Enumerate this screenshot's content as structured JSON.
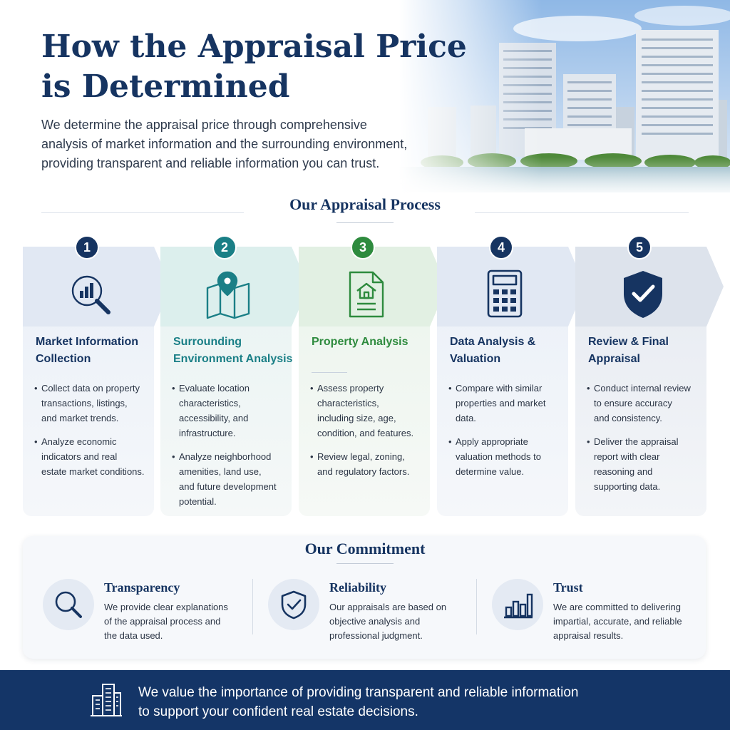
{
  "hero": {
    "title_line1": "How the Appraisal Price",
    "title_line2": "is Determined",
    "intro_line1": "We determine the appraisal price through comprehensive",
    "intro_line2": "analysis of market information and the surrounding environment,",
    "intro_line3": "providing transparent and reliable information you can trust.",
    "image": "city-skyline-riverside-photo"
  },
  "process": {
    "heading": "Our Appraisal Process",
    "steps": [
      {
        "number": "1",
        "title_line1": "Market Information",
        "title_line2": "Collection",
        "icon": "magnifier-chart-icon",
        "accent": "#163461",
        "bullets": [
          [
            "Collect data on property",
            "transactions, listings,",
            "and market trends."
          ],
          [
            "Analyze economic",
            "indicators and real",
            "estate market conditions."
          ]
        ]
      },
      {
        "number": "2",
        "title_line1": "Surrounding",
        "title_line2": "Environment Analysis",
        "icon": "map-pin-icon",
        "accent": "#1a7f86",
        "bullets": [
          [
            "Evaluate location",
            "characteristics,",
            "accessibility, and",
            "infrastructure."
          ],
          [
            "Analyze neighborhood",
            "amenities, land use,",
            "and future development",
            "potential."
          ]
        ]
      },
      {
        "number": "3",
        "title_line1": "Property Analysis",
        "title_line2": "",
        "icon": "document-house-icon",
        "accent": "#2e8b3e",
        "bullets": [
          [
            "Assess property",
            "characteristics,",
            "including size, age,",
            "condition, and features."
          ],
          [
            "Review legal, zoning,",
            "and regulatory factors."
          ]
        ]
      },
      {
        "number": "4",
        "title_line1": "Data Analysis &",
        "title_line2": "Valuation",
        "icon": "calculator-icon",
        "accent": "#163461",
        "bullets": [
          [
            "Compare with similar",
            "properties and market",
            "data."
          ],
          [
            "Apply appropriate",
            "valuation methods to",
            "determine value."
          ]
        ]
      },
      {
        "number": "5",
        "title_line1": "Review & Final",
        "title_line2": "Appraisal",
        "icon": "shield-check-icon",
        "accent": "#163461",
        "bullets": [
          [
            "Conduct internal review",
            "to ensure accuracy",
            "and consistency."
          ],
          [
            "Deliver the appraisal",
            "report with clear",
            "reasoning and",
            "supporting data."
          ]
        ]
      }
    ]
  },
  "commitment": {
    "heading": "Our Commitment",
    "items": [
      {
        "title": "Transparency",
        "icon": "magnifier-icon",
        "lines": [
          "We provide clear explanations",
          "of the appraisal process and",
          "the data used."
        ]
      },
      {
        "title": "Reliability",
        "icon": "shield-check-icon",
        "lines": [
          "Our appraisals are based on",
          "objective analysis and",
          "professional judgment."
        ]
      },
      {
        "title": "Trust",
        "icon": "bar-chart-icon",
        "lines": [
          "We are committed to delivering",
          "impartial, accurate, and reliable",
          "appraisal results."
        ]
      }
    ]
  },
  "footer": {
    "icon": "buildings-icon",
    "line1": "We value the importance of providing transparent and reliable information",
    "line2": "to support your confident real estate decisions."
  },
  "colors": {
    "navy": "#163461",
    "teal": "#1a7f86",
    "green": "#2e8b3e",
    "footer_bg": "#143567"
  }
}
